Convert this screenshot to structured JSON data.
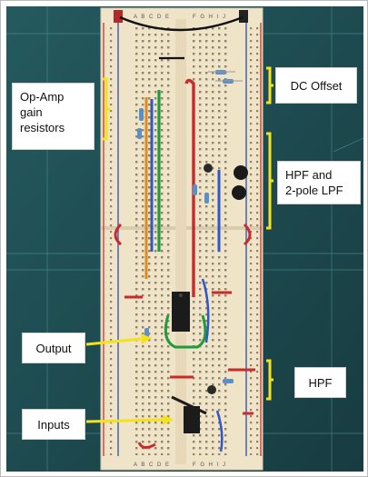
{
  "labels": {
    "opamp_line1": "Op-Amp",
    "opamp_line2": "gain",
    "opamp_line3": "resistors",
    "dc_offset": "DC Offset",
    "hpf_lpf_line1": "HPF and",
    "hpf_lpf_line2": "2-pole LPF",
    "output": "Output",
    "hpf": "HPF",
    "inputs": "Inputs"
  },
  "breadboard": {
    "column_letters_left": "A B C D E",
    "column_letters_right": "F G H I J"
  },
  "colors": {
    "mat": "#1d4a4f",
    "mat_grid": "#5fb0b5",
    "board": "#efe3c8",
    "rail_red": "#c8322d",
    "rail_blue": "#2a4fa8",
    "annotation_yellow": "#f3e21c",
    "wire_green": "#1f9a3c",
    "wire_red": "#c92a2a",
    "wire_blue": "#2e58c7",
    "wire_orange": "#e28a1a",
    "ic_black": "#1b1b1b"
  }
}
